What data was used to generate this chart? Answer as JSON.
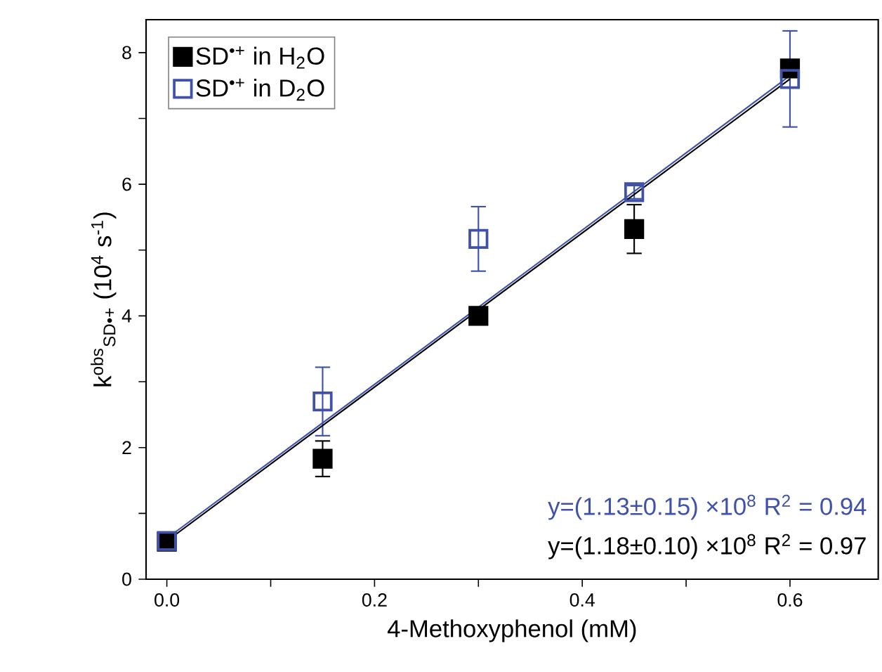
{
  "chart_data": {
    "type": "scatter",
    "xlabel": "4-Methoxyphenol (mM)",
    "ylabel": "k$^{obs}$$_{SD•+}$ (10$^{4}$ s$^{-1}$)",
    "xlim": [
      -0.02,
      0.685
    ],
    "ylim": [
      0,
      8.5
    ],
    "xticks": [
      {
        "value": 0,
        "label": "0.0"
      },
      {
        "value": 0.1,
        "label": null
      },
      {
        "value": 0.2,
        "label": "0.2"
      },
      {
        "value": 0.3,
        "label": null
      },
      {
        "value": 0.4,
        "label": "0.4"
      },
      {
        "value": 0.5,
        "label": null
      },
      {
        "value": 0.6,
        "label": "0.6"
      }
    ],
    "yticks": [
      0,
      {
        "value": 1,
        "label": null
      },
      2,
      {
        "value": 3,
        "label": null
      },
      4,
      {
        "value": 5,
        "label": null
      },
      6,
      {
        "value": 7,
        "label": null
      },
      8
    ],
    "x": [
      0,
      0.15,
      0.3,
      0.45,
      0.6
    ],
    "series": [
      {
        "name": "SD$^{•+}$ in H$_{2}$O",
        "color": "#000000",
        "values": [
          0.57,
          1.83,
          4.0,
          5.32,
          7.76
        ],
        "errors": [
          null,
          0.27,
          null,
          0.37,
          null
        ]
      },
      {
        "name": "SD$^{•+}$ in D$_{2}$O",
        "color": "#3f51a8",
        "values": [
          0.58,
          2.7,
          5.17,
          5.88,
          7.6
        ],
        "errors": [
          0.1,
          0.52,
          0.49,
          0.1,
          0.73
        ]
      },
      {
        "type": "line",
        "marker": "none",
        "color": "#3f51a8",
        "x": [
          0,
          0.3,
          0.6
        ],
        "values": [
          0.62,
          4.13,
          7.65
        ]
      },
      {
        "type": "line",
        "marker": "none",
        "color": "#000000",
        "x": [
          0,
          0.3,
          0.6
        ],
        "values": [
          0.58,
          4.09,
          7.6
        ]
      }
    ],
    "marker": "square",
    "legend": "top left",
    "grid": false,
    "annotations": [
      "y=(1.13±0.15) ×10$^{8}$  R$^{2}$ = 0.94",
      "y=(1.18±0.10) ×10$^{8}$  R$^{2}$ = 0.97"
    ]
  }
}
